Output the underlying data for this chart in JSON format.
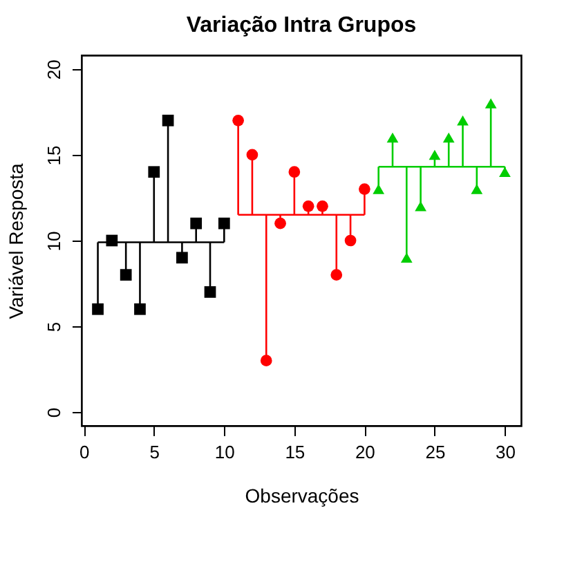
{
  "chart_data": {
    "type": "scatter",
    "title": "Variação Intra Grupos",
    "xlabel": "Observações",
    "ylabel": "Variável Resposta",
    "xlim": [
      -0.16,
      31.16
    ],
    "xticks": [
      0,
      5,
      10,
      15,
      20,
      25,
      30
    ],
    "ylim": [
      -0.8,
      20.8
    ],
    "yticks": [
      0,
      5,
      10,
      15,
      20
    ],
    "grid": false,
    "legend": false,
    "series": [
      {
        "marker": "square",
        "color": "#000000",
        "x": [
          1,
          2,
          3,
          4,
          5,
          6,
          7,
          8,
          9,
          10
        ],
        "values": [
          6,
          10,
          8,
          6,
          14,
          17,
          9,
          11,
          7,
          11
        ],
        "errors": [
          [
            6,
            9.9
          ],
          [
            9.9,
            10
          ],
          [
            8,
            9.9
          ],
          [
            6,
            9.9
          ],
          [
            9.9,
            14
          ],
          [
            9.9,
            17
          ],
          [
            9,
            9.9
          ],
          [
            9.9,
            11
          ],
          [
            7,
            9.9
          ],
          [
            9.9,
            11
          ]
        ]
      },
      {
        "marker": "circle",
        "color": "#ff0000",
        "x": [
          11,
          12,
          13,
          14,
          15,
          16,
          17,
          18,
          19,
          20
        ],
        "values": [
          17,
          15,
          3,
          11,
          14,
          12,
          12,
          8,
          10,
          13
        ],
        "errors": [
          [
            11.5,
            17
          ],
          [
            11.5,
            15
          ],
          [
            3,
            11.5
          ],
          [
            11,
            11.5
          ],
          [
            11.5,
            14
          ],
          [
            11.5,
            12
          ],
          [
            11.5,
            12
          ],
          [
            8,
            11.5
          ],
          [
            10,
            11.5
          ],
          [
            11.5,
            13
          ]
        ]
      },
      {
        "marker": "triangle",
        "color": "#00cd00",
        "x": [
          21,
          22,
          23,
          24,
          25,
          26,
          27,
          28,
          29,
          30
        ],
        "values": [
          13,
          16,
          9,
          12,
          15,
          16,
          17,
          13,
          18,
          14
        ],
        "errors": [
          [
            13,
            14.3
          ],
          [
            14.3,
            16
          ],
          [
            9,
            14.3
          ],
          [
            12,
            14.3
          ],
          [
            14.3,
            15
          ],
          [
            14.3,
            16
          ],
          [
            14.3,
            17
          ],
          [
            13,
            14.3
          ],
          [
            14.3,
            18
          ],
          [
            14,
            14.3
          ]
        ]
      },
      {
        "type": "line",
        "color": "#000000",
        "x": [
          1,
          10
        ],
        "values": [
          9.9,
          9.9
        ]
      },
      {
        "type": "line",
        "color": "#ff0000",
        "x": [
          11,
          20
        ],
        "values": [
          11.5,
          11.5
        ]
      },
      {
        "type": "line",
        "color": "#00cd00",
        "x": [
          21,
          30
        ],
        "values": [
          14.3,
          14.3
        ]
      }
    ]
  }
}
